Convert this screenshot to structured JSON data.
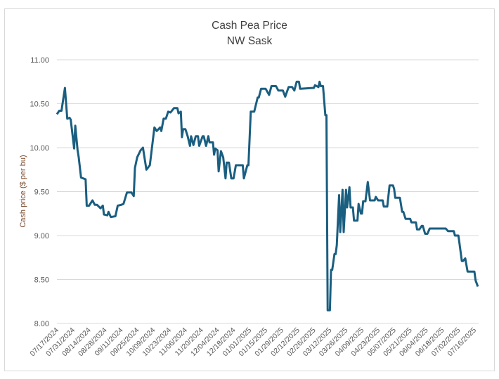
{
  "chart_data": {
    "type": "line",
    "title": "Cash Pea Price",
    "subtitle": "NW Sask",
    "xlabel": "",
    "ylabel": "Cash price ($ per bu)",
    "ylim": [
      8.0,
      11.0
    ],
    "yticks": [
      "8.00",
      "8.50",
      "9.00",
      "9.50",
      "10.00",
      "10.50",
      "11.00"
    ],
    "ytick_values": [
      8.0,
      8.5,
      9.0,
      9.5,
      10.0,
      10.5,
      11.0
    ],
    "x_unit": "days since 07/17/2024",
    "xlim": [
      0,
      367
    ],
    "xticks": [
      "07/17/2024",
      "07/31/2024",
      "08/14/2024",
      "08/28/2024",
      "09/11/2024",
      "09/25/2024",
      "10/09/2024",
      "10/23/2024",
      "11/06/2024",
      "11/20/2024",
      "12/04/2024",
      "12/18/2024",
      "01/01/2025",
      "01/15/2025",
      "01/29/2025",
      "02/12/2025",
      "02/26/2025",
      "03/12/2025",
      "03/26/2025",
      "04/09/2025",
      "04/23/2025",
      "05/07/2025",
      "05/21/2025",
      "06/04/2025",
      "06/18/2025",
      "07/02/2025",
      "07/16/2025"
    ],
    "grid": true,
    "legend": "none",
    "series": [
      {
        "name": "Cash price",
        "color": "#1a5e80",
        "x": [
          0,
          2,
          4,
          7,
          9,
          11,
          12,
          15,
          16,
          18,
          19,
          21,
          25,
          26,
          28,
          31,
          33,
          35,
          38,
          40,
          41,
          44,
          45,
          47,
          51,
          53,
          56,
          58,
          61,
          65,
          67,
          68,
          70,
          73,
          75,
          78,
          81,
          85,
          87,
          90,
          91,
          93,
          95,
          97,
          99,
          102,
          105,
          106,
          108,
          109,
          110,
          112,
          114,
          116,
          117,
          119,
          121,
          123,
          124,
          127,
          128,
          130,
          132,
          133,
          136,
          137,
          138,
          140,
          141,
          143,
          145,
          147,
          148,
          150,
          152,
          154,
          156,
          162,
          163,
          166,
          167,
          169,
          172,
          175,
          176,
          178,
          182,
          185,
          187,
          191,
          193,
          197,
          199,
          202,
          205,
          207,
          209,
          211,
          212,
          224,
          225,
          228,
          229,
          230,
          232,
          234,
          235,
          236,
          238,
          239,
          240,
          242,
          243,
          244,
          246,
          247,
          249,
          250,
          252,
          253,
          255,
          256,
          258,
          259,
          262,
          263,
          265,
          266,
          267,
          269,
          271,
          273,
          277,
          278,
          280,
          284,
          285,
          288,
          290,
          293,
          294,
          295,
          299,
          301,
          302,
          304,
          308,
          309,
          313,
          314,
          316,
          318,
          319,
          321,
          323,
          325,
          339,
          341,
          346,
          347,
          350,
          351,
          353,
          354,
          356,
          358,
          364,
          365,
          367
        ],
        "y": [
          10.38,
          10.42,
          10.42,
          10.68,
          10.33,
          10.34,
          10.32,
          9.99,
          10.25,
          9.97,
          9.89,
          9.66,
          9.64,
          9.34,
          9.34,
          9.4,
          9.35,
          9.35,
          9.31,
          9.34,
          9.24,
          9.23,
          9.27,
          9.21,
          9.22,
          9.34,
          9.35,
          9.36,
          9.49,
          9.49,
          9.45,
          9.77,
          9.89,
          9.97,
          10.0,
          9.75,
          9.8,
          10.23,
          10.19,
          10.23,
          10.19,
          10.33,
          10.33,
          10.41,
          10.4,
          10.45,
          10.45,
          10.39,
          10.41,
          10.12,
          10.21,
          10.21,
          10.13,
          10.02,
          10.13,
          10.03,
          10.13,
          10.13,
          10.02,
          10.13,
          10.13,
          10.02,
          10.13,
          10.06,
          10.06,
          9.92,
          9.99,
          9.97,
          9.73,
          9.96,
          9.89,
          9.65,
          9.83,
          9.83,
          9.65,
          9.65,
          9.8,
          9.8,
          9.65,
          9.8,
          9.8,
          10.41,
          10.41,
          10.57,
          10.57,
          10.67,
          10.67,
          10.6,
          10.7,
          10.7,
          10.65,
          10.65,
          10.58,
          10.69,
          10.69,
          10.65,
          10.75,
          10.75,
          10.67,
          10.68,
          10.71,
          10.69,
          10.75,
          10.7,
          10.7,
          10.37,
          10.37,
          8.15,
          8.15,
          8.61,
          8.61,
          8.79,
          8.79,
          8.89,
          9.46,
          9.04,
          9.52,
          9.04,
          9.52,
          9.32,
          9.55,
          9.32,
          9.32,
          9.17,
          9.17,
          9.36,
          9.25,
          9.25,
          9.39,
          9.39,
          9.61,
          9.4,
          9.4,
          9.44,
          9.4,
          9.4,
          9.33,
          9.33,
          9.57,
          9.57,
          9.53,
          9.43,
          9.43,
          9.27,
          9.27,
          9.19,
          9.19,
          9.15,
          9.15,
          9.07,
          9.07,
          9.11,
          9.11,
          9.02,
          9.02,
          9.08,
          9.08,
          9.05,
          9.05,
          9.0,
          9.0,
          8.91,
          8.71,
          8.71,
          8.74,
          8.59,
          8.59,
          8.49,
          8.42
        ]
      }
    ]
  }
}
